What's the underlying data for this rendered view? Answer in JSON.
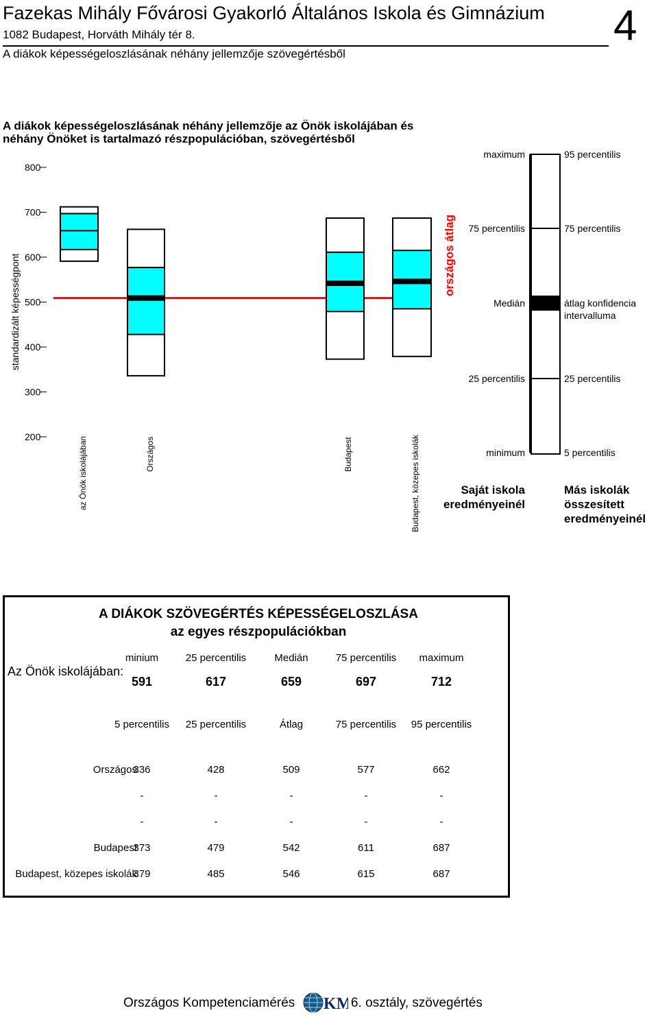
{
  "header": {
    "school_name": "Fazekas Mihály Fővárosi Gyakorló Általános Iskola és Gimnázium",
    "address": "1082 Budapest, Horváth Mihály tér 8.",
    "subtitle": "A diákok képességeloszlásának néhány jellemzője szövegértésből",
    "page_number": "4"
  },
  "section_title_line1": "A diákok képességeloszlásának néhány jellemzője az Önök iskolájában és",
  "section_title_line2": "néhány Önöket is tartalmazó részpopulációban, szövegértésből",
  "colors": {
    "box_fill": "#00ffff",
    "national_average_line": "#ff0000",
    "box_stroke": "#000000"
  },
  "chart_data": {
    "type": "boxplot",
    "ylabel": "standardizált képességpont",
    "ylim": [
      200,
      800
    ],
    "yticks": [
      800,
      700,
      600,
      500,
      400,
      300,
      200
    ],
    "reference_line": {
      "label": "országos átlag",
      "value": 509
    },
    "groups": [
      {
        "name": "az Önök iskolájában",
        "kind": "own_school",
        "min": 591,
        "p25": 617,
        "median": 659,
        "p75": 697,
        "max": 712
      },
      {
        "name": "Országos",
        "kind": "aggregate",
        "p5": 336,
        "p25": 428,
        "mean": 509,
        "p75": 577,
        "p95": 662
      },
      {
        "name": "Budapest",
        "kind": "aggregate",
        "p5": 373,
        "p25": 479,
        "mean": 542,
        "p75": 611,
        "p95": 687
      },
      {
        "name": "Budapest, közepes iskolák",
        "kind": "aggregate",
        "p5": 379,
        "p25": 485,
        "mean": 546,
        "p75": 615,
        "p95": 687
      }
    ],
    "legend": {
      "own_school": {
        "max": "maximum",
        "p75": "75 percentilis",
        "median": "Medián",
        "p25": "25 percentilis",
        "min": "minimum",
        "caption_line1": "Saját iskola",
        "caption_line2": "eredményeinél"
      },
      "others": {
        "p95": "95 percentilis",
        "p75": "75 percentilis",
        "ci_line1": "átlag konfidencia",
        "ci_line2": "intervalluma",
        "p25": "25 percentilis",
        "p5": "5 percentilis",
        "caption_line1": "Más iskolák",
        "caption_line2": "összesített",
        "caption_line3": "eredményeinél"
      }
    }
  },
  "stats_table": {
    "title_line1": "A DIÁKOK SZÖVEGÉRTÉS KÉPESSÉGELOSZLÁSA",
    "title_line2": "az egyes részpopulációkban",
    "own_school": {
      "label": "Az Önök iskolájában:",
      "headers": [
        "minium",
        "25 percentilis",
        "Medián",
        "75 percentilis",
        "maximum"
      ],
      "values": [
        "591",
        "617",
        "659",
        "697",
        "712"
      ]
    },
    "others": {
      "headers": [
        "5 percentilis",
        "25 percentilis",
        "Átlag",
        "75 percentilis",
        "95 percentilis"
      ],
      "rows": [
        {
          "label": "Országos",
          "values": [
            "336",
            "428",
            "509",
            "577",
            "662"
          ]
        },
        {
          "label": "",
          "values": [
            "-",
            "-",
            "-",
            "-",
            "-"
          ]
        },
        {
          "label": "",
          "values": [
            "-",
            "-",
            "-",
            "-",
            "-"
          ]
        },
        {
          "label": "Budapest",
          "values": [
            "373",
            "479",
            "542",
            "611",
            "687"
          ]
        },
        {
          "label": "Budapest, közepes iskolák",
          "values": [
            "379",
            "485",
            "546",
            "615",
            "687"
          ]
        }
      ]
    }
  },
  "footer": {
    "left_text": "Országos Kompetenciamérés",
    "logo_text": "KM",
    "right_text": "6. osztály, szövegértés"
  }
}
